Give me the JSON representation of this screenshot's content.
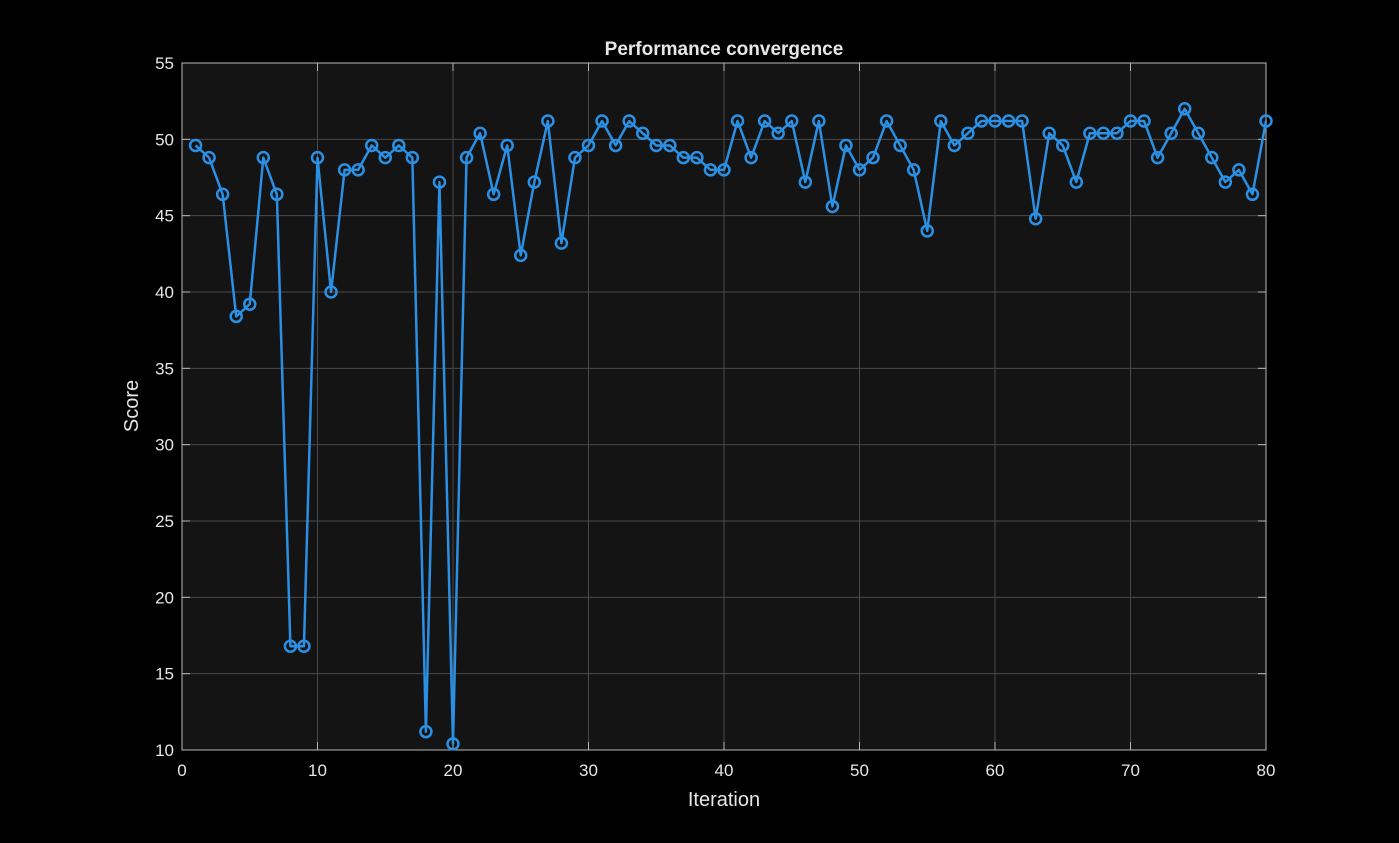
{
  "chart_data": {
    "type": "line",
    "title": "Performance convergence",
    "xlabel": "Iteration",
    "ylabel": "Score",
    "xlim": [
      0,
      80
    ],
    "ylim": [
      10,
      55
    ],
    "xticks": [
      0,
      10,
      20,
      30,
      40,
      50,
      60,
      70,
      80
    ],
    "yticks": [
      10,
      15,
      20,
      25,
      30,
      35,
      40,
      45,
      50,
      55
    ],
    "grid": true,
    "background_color": "#141414",
    "figure_color": "#000000",
    "marker": "circle",
    "series": [
      {
        "color": "#2b8fe3",
        "x": [
          1,
          2,
          3,
          4,
          5,
          6,
          7,
          8,
          9,
          10,
          11,
          12,
          13,
          14,
          15,
          16,
          17,
          18,
          19,
          20,
          21,
          22,
          23,
          24,
          25,
          26,
          27,
          28,
          29,
          30,
          31,
          32,
          33,
          34,
          35,
          36,
          37,
          38,
          39,
          40,
          41,
          42,
          43,
          44,
          45,
          46,
          47,
          48,
          49,
          50,
          51,
          52,
          53,
          54,
          55,
          56,
          57,
          58,
          59,
          60,
          61,
          62,
          63,
          64,
          65,
          66,
          67,
          68,
          69,
          70,
          71,
          72,
          73,
          74,
          75,
          76,
          77,
          78,
          79,
          80
        ],
        "values": [
          49.6,
          48.8,
          46.4,
          38.4,
          39.2,
          48.8,
          46.4,
          16.8,
          16.8,
          48.8,
          40.0,
          48.0,
          48.0,
          49.6,
          48.8,
          49.6,
          48.8,
          11.2,
          47.2,
          10.4,
          48.8,
          50.4,
          46.4,
          49.6,
          42.4,
          47.2,
          51.2,
          43.2,
          48.8,
          49.6,
          51.2,
          49.6,
          51.2,
          50.4,
          49.6,
          49.6,
          48.8,
          48.8,
          48.0,
          48.0,
          51.2,
          48.8,
          51.2,
          50.4,
          51.2,
          47.2,
          51.2,
          45.6,
          49.6,
          48.0,
          48.8,
          51.2,
          49.6,
          48.0,
          44.0,
          51.2,
          49.6,
          50.4,
          51.2,
          51.2,
          51.2,
          51.2,
          44.8,
          50.4,
          49.6,
          47.2,
          50.4,
          50.4,
          50.4,
          51.2,
          51.2,
          48.8,
          50.4,
          52.0,
          50.4,
          48.8,
          47.2,
          48.0,
          46.4,
          51.2
        ]
      }
    ]
  }
}
